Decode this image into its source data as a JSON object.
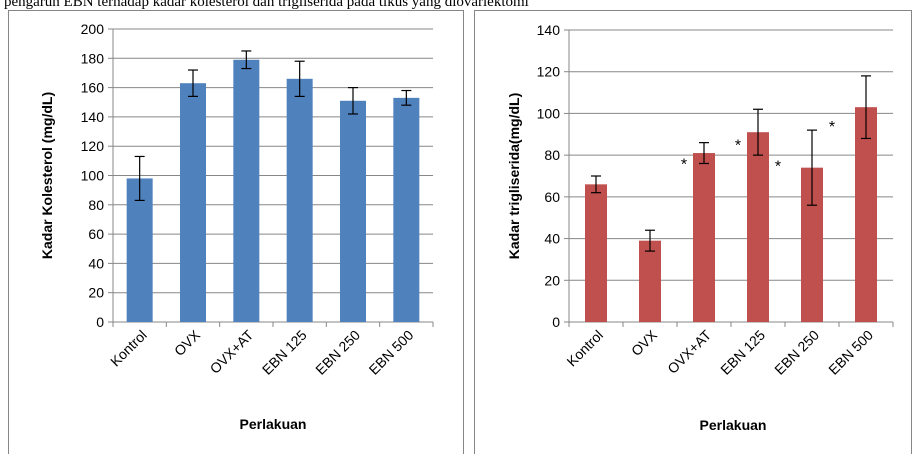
{
  "page": {
    "top_text": "pengaruh EBN terhadap kadar kolesterol dan trigliserida pada tikus yang diovariektomi"
  },
  "chart_data": [
    {
      "type": "bar",
      "categories": [
        "Kontrol",
        "OVX",
        "OVX+AT",
        "EBN 125",
        "EBN 250",
        "EBN 500"
      ],
      "values": [
        98,
        163,
        179,
        166,
        151,
        153
      ],
      "errors": [
        15,
        9,
        6,
        12,
        9,
        5
      ],
      "ylim": [
        0,
        200
      ],
      "yticks": [
        0,
        20,
        40,
        60,
        80,
        100,
        120,
        140,
        160,
        180,
        200
      ],
      "ylabel": "Kadar Kolesterol (mg/dL)",
      "xlabel": "Perlakuan",
      "color": "#4f81bd",
      "grid": true,
      "annotations": []
    },
    {
      "type": "bar",
      "categories": [
        "Kontrol",
        "OVX",
        "OVX+AT",
        "EBN 125",
        "EBN 250",
        "EBN 500"
      ],
      "values": [
        66,
        39,
        81,
        91,
        74,
        103
      ],
      "errors": [
        4,
        5,
        5,
        11,
        18,
        15
      ],
      "ylim": [
        0,
        140
      ],
      "yticks": [
        0,
        20,
        40,
        60,
        80,
        100,
        120,
        140
      ],
      "ylabel": "Kadar trigliserida(mg/dL)",
      "xlabel": "Perlakuan",
      "color": "#c0504d",
      "grid": true,
      "annotations": [
        {
          "category": "OVX+AT",
          "text": "*",
          "y": 78,
          "side": "left"
        },
        {
          "category": "EBN 125",
          "text": "*",
          "y": 87,
          "side": "left"
        },
        {
          "category": "EBN 125",
          "text": "*",
          "y": 77,
          "side": "right"
        },
        {
          "category": "EBN 250",
          "text": "*",
          "y": 96,
          "side": "right"
        }
      ]
    }
  ]
}
